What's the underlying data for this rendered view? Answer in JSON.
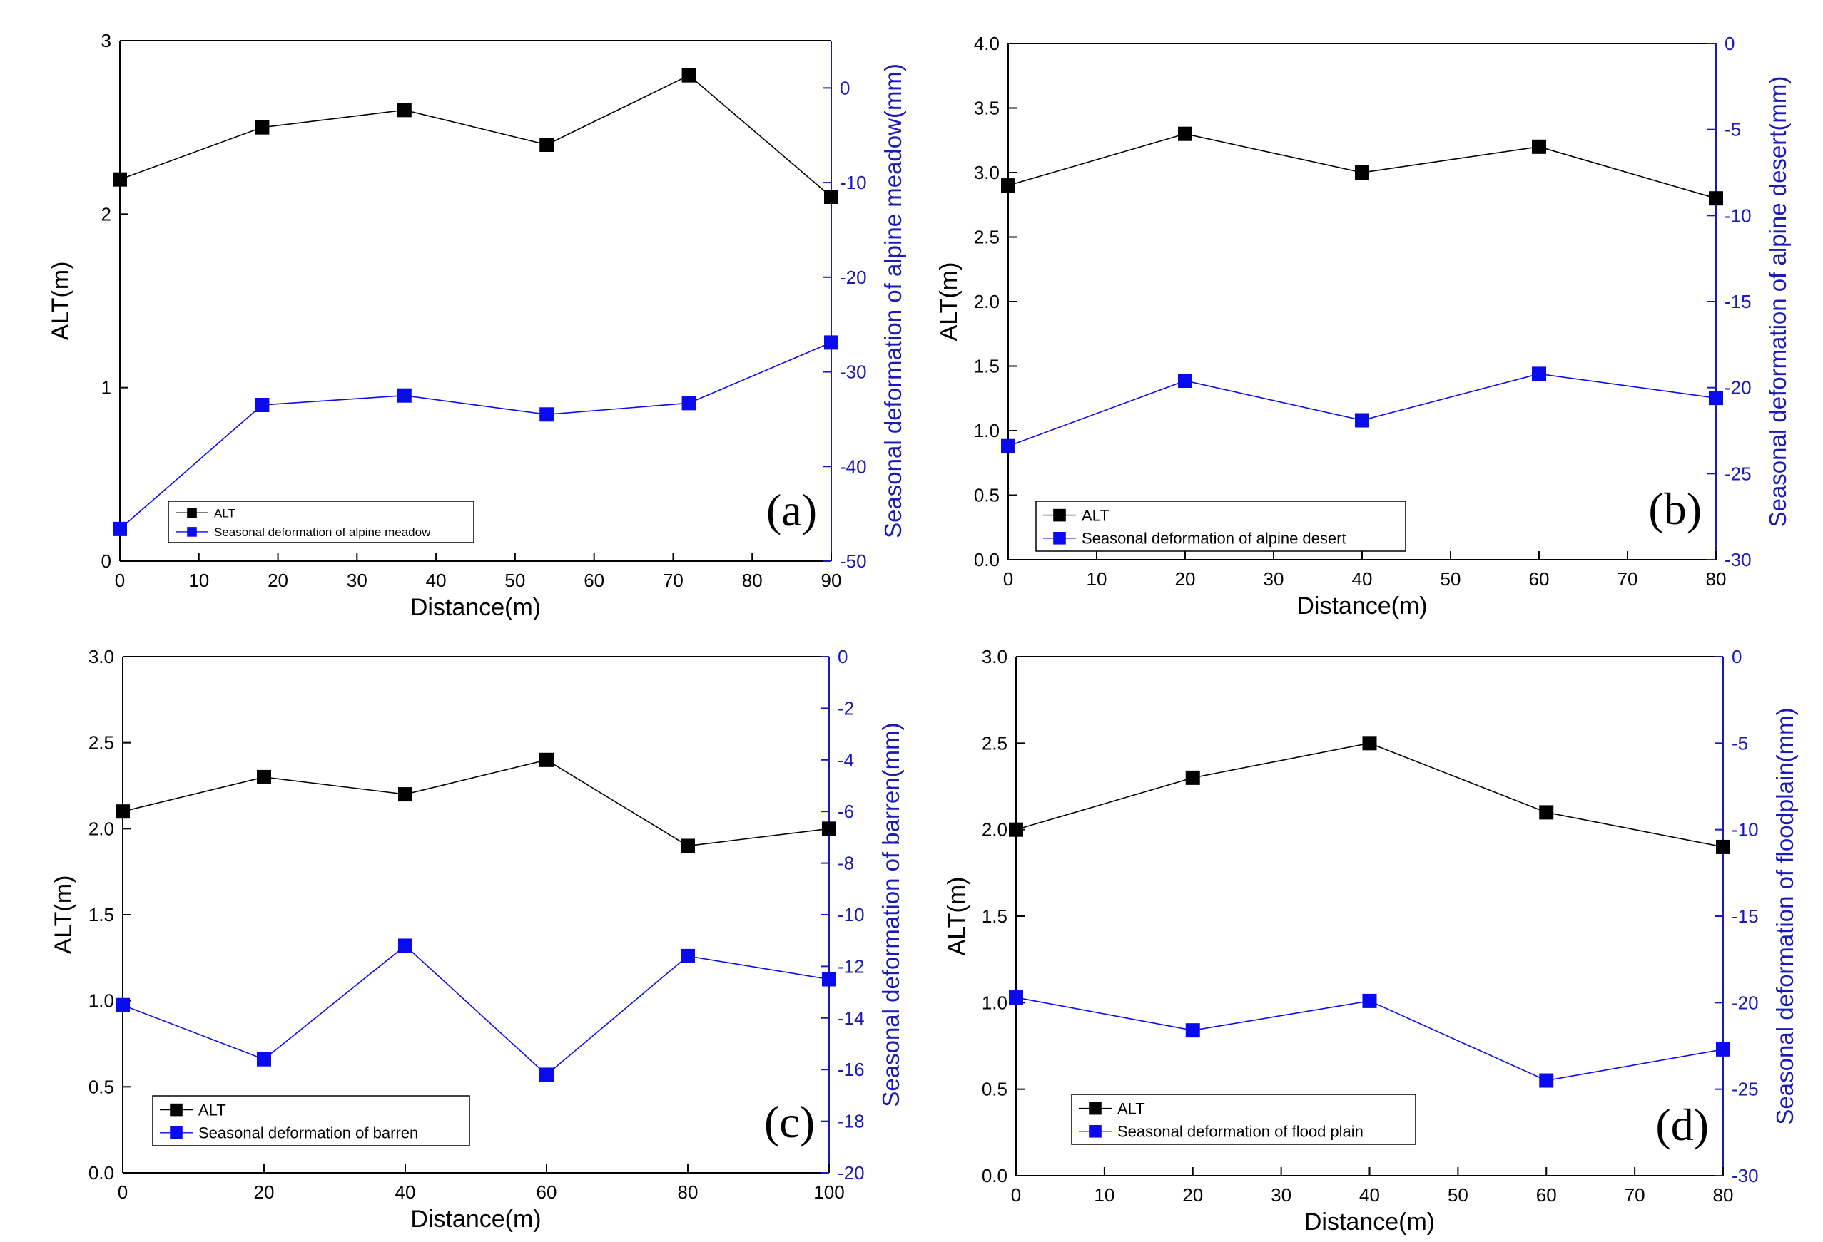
{
  "colors": {
    "alt_series": "#000000",
    "deformation_series": "#0a0aee",
    "right_axis": "#1a1ab8",
    "left_axis": "#000000",
    "background": "#ffffff"
  },
  "chart_data": [
    {
      "type": "line",
      "panel_label": "(a)",
      "xlabel": "Distance(m)",
      "ylabel_left": "ALT(m)",
      "ylabel_right": "Seasonal deformation of alpine meadow(mm)",
      "xlim": [
        0,
        90
      ],
      "ylim_left": [
        0,
        3
      ],
      "ylim_right": [
        -50,
        5
      ],
      "x_ticks": [
        "0",
        "10",
        "20",
        "30",
        "40",
        "50",
        "60",
        "70",
        "80",
        "90"
      ],
      "y_left_ticks": [
        "0",
        "1",
        "2",
        "3"
      ],
      "y_right_ticks": [
        "0",
        "-10",
        "-20",
        "-30",
        "-40",
        "-50"
      ],
      "legend_position": "bottom-left",
      "series": [
        {
          "name": "ALT",
          "axis": "left",
          "x": [
            0,
            18,
            36,
            54,
            72,
            90
          ],
          "values": [
            2.2,
            2.5,
            2.6,
            2.4,
            2.8,
            2.1
          ]
        },
        {
          "name": "Seasonal deformation of alpine meadow",
          "axis": "right",
          "x": [
            0,
            18,
            36,
            54,
            72,
            90
          ],
          "values": [
            -46.6,
            -33.5,
            -32.5,
            -34.5,
            -33.3,
            -26.9
          ]
        }
      ]
    },
    {
      "type": "line",
      "panel_label": "(b)",
      "xlabel": "Distance(m)",
      "ylabel_left": "ALT(m)",
      "ylabel_right": "Seasonal deformation of alpine desert(mm)",
      "xlim": [
        0,
        80
      ],
      "ylim_left": [
        0,
        4
      ],
      "ylim_right": [
        -30,
        0
      ],
      "x_ticks": [
        "0",
        "10",
        "20",
        "30",
        "40",
        "50",
        "60",
        "70",
        "80"
      ],
      "y_left_ticks": [
        "0.0",
        "0.5",
        "1.0",
        "1.5",
        "2.0",
        "2.5",
        "3.0",
        "3.5",
        "4.0"
      ],
      "y_right_ticks": [
        "0",
        "-5",
        "-10",
        "-15",
        "-20",
        "-25",
        "-30"
      ],
      "legend_position": "bottom-left",
      "series": [
        {
          "name": "ALT",
          "axis": "left",
          "x": [
            0,
            20,
            40,
            60,
            80
          ],
          "values": [
            2.9,
            3.3,
            3.0,
            3.2,
            2.8
          ]
        },
        {
          "name": "Seasonal deformation of alpine desert",
          "axis": "right",
          "x": [
            0,
            20,
            40,
            60,
            80
          ],
          "values": [
            -23.4,
            -19.6,
            -21.9,
            -19.2,
            -20.6
          ]
        }
      ]
    },
    {
      "type": "line",
      "panel_label": "(c)",
      "xlabel": "Distance(m)",
      "ylabel_left": "ALT(m)",
      "ylabel_right": "Seasonal deformation of barren(mm)",
      "xlim": [
        0,
        100
      ],
      "ylim_left": [
        0,
        3
      ],
      "ylim_right": [
        -20,
        0
      ],
      "x_ticks": [
        "0",
        "20",
        "40",
        "60",
        "80",
        "100"
      ],
      "y_left_ticks": [
        "0.0",
        "0.5",
        "1.0",
        "1.5",
        "2.0",
        "2.5",
        "3.0"
      ],
      "y_right_ticks": [
        "0",
        "-2",
        "-4",
        "-6",
        "-8",
        "-10",
        "-12",
        "-14",
        "-16",
        "-18",
        "-20"
      ],
      "legend_position": "bottom-left",
      "series": [
        {
          "name": "ALT",
          "axis": "left",
          "x": [
            0,
            20,
            40,
            60,
            80,
            100
          ],
          "values": [
            2.1,
            2.3,
            2.2,
            2.4,
            1.9,
            2.0
          ]
        },
        {
          "name": "Seasonal deformation of barren",
          "axis": "right",
          "x": [
            0,
            20,
            40,
            60,
            80,
            100
          ],
          "values": [
            -13.5,
            -15.6,
            -11.2,
            -16.2,
            -11.6,
            -12.5
          ]
        }
      ]
    },
    {
      "type": "line",
      "panel_label": "(d)",
      "xlabel": "Distance(m)",
      "ylabel_left": "ALT(m)",
      "ylabel_right": "Seasonal deformation of floodplain(mm)",
      "xlim": [
        0,
        80
      ],
      "ylim_left": [
        0,
        3
      ],
      "ylim_right": [
        -30,
        0
      ],
      "x_ticks": [
        "0",
        "10",
        "20",
        "30",
        "40",
        "50",
        "60",
        "70",
        "80"
      ],
      "y_left_ticks": [
        "0.0",
        "0.5",
        "1.0",
        "1.5",
        "2.0",
        "2.5",
        "3.0"
      ],
      "y_right_ticks": [
        "0",
        "-5",
        "-10",
        "-15",
        "-20",
        "-25",
        "-30"
      ],
      "legend_position": "bottom-left",
      "series": [
        {
          "name": "ALT",
          "axis": "left",
          "x": [
            0,
            20,
            40,
            60,
            80
          ],
          "values": [
            2.0,
            2.3,
            2.5,
            2.1,
            1.9
          ]
        },
        {
          "name": "Seasonal deformation of flood plain",
          "axis": "right",
          "x": [
            0,
            20,
            40,
            60,
            80
          ],
          "values": [
            -19.7,
            -21.6,
            -19.9,
            -24.5,
            -22.7
          ]
        }
      ]
    }
  ]
}
